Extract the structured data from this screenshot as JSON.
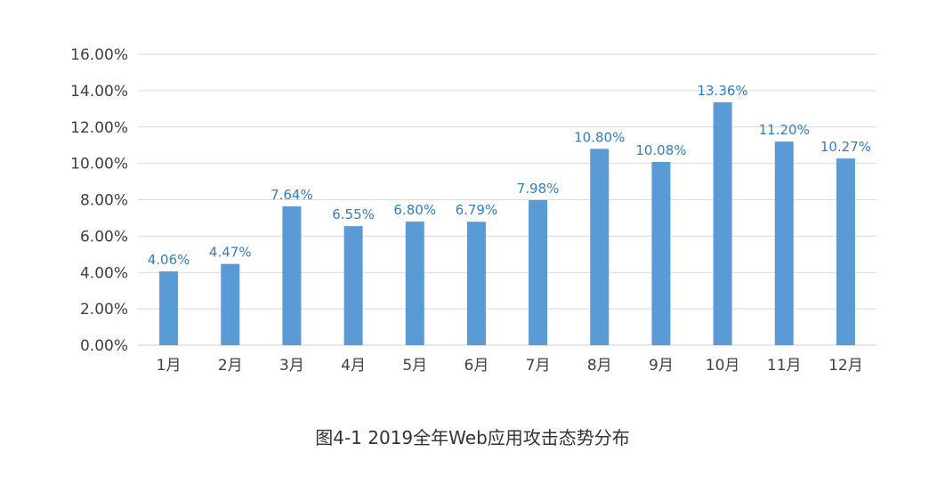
{
  "chart_data": {
    "type": "bar",
    "categories": [
      "1月",
      "2月",
      "3月",
      "4月",
      "5月",
      "6月",
      "7月",
      "8月",
      "9月",
      "10月",
      "11月",
      "12月"
    ],
    "values": [
      4.06,
      4.47,
      7.64,
      6.55,
      6.8,
      6.79,
      7.98,
      10.8,
      10.08,
      13.36,
      11.2,
      10.27
    ],
    "data_labels": [
      "4.06%",
      "4.47%",
      "7.64%",
      "6.55%",
      "6.80%",
      "6.79%",
      "7.98%",
      "10.80%",
      "10.08%",
      "13.36%",
      "11.20%",
      "10.27%"
    ],
    "y_ticks": [
      "0.00%",
      "2.00%",
      "4.00%",
      "6.00%",
      "8.00%",
      "10.00%",
      "12.00%",
      "14.00%",
      "16.00%"
    ],
    "ylim": [
      0,
      16
    ],
    "grid": true,
    "bar_color": "#5b9bd5",
    "label_color": "#2f7fc1",
    "title": "",
    "xlabel": "",
    "ylabel": ""
  },
  "caption": "图4-1 2019全年Web应用攻击态势分布"
}
